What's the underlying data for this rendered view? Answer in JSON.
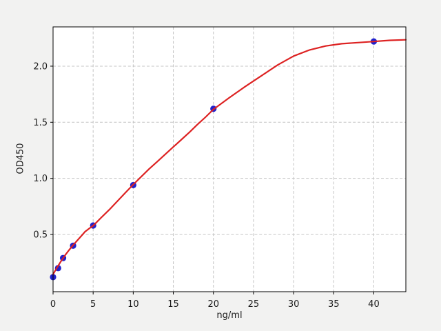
{
  "chart_data": {
    "type": "scatter",
    "xlabel": "ng/ml",
    "ylabel": "OD450",
    "xlim": [
      0,
      44
    ],
    "ylim": [
      -0.01,
      2.35
    ],
    "xticks": [
      0,
      5,
      10,
      15,
      20,
      25,
      30,
      35,
      40
    ],
    "xtick_labels": [
      "0",
      "5",
      "10",
      "15",
      "20",
      "25",
      "30",
      "35",
      "40"
    ],
    "yticks": [
      0.5,
      1.0,
      1.5,
      2.0
    ],
    "ytick_labels": [
      "0.5",
      "1.0",
      "1.5",
      "2.0"
    ],
    "grid": true,
    "grid_style": "dashed",
    "legend": false,
    "colors": {
      "figure_background": "#f2f2f1",
      "plot_background": "#ffffff",
      "grid": "#c4c4c4",
      "spine": "#000000",
      "tick_text": "#1a1a1a",
      "points": "#2222cc",
      "fit_line": "#dd2222"
    },
    "series": [
      {
        "name": "standard-points",
        "kind": "scatter",
        "color": "#2222cc",
        "x": [
          0,
          0.625,
          1.25,
          2.5,
          5,
          10,
          20,
          40
        ],
        "y": [
          0.12,
          0.2,
          0.29,
          0.4,
          0.58,
          0.94,
          1.62,
          2.22
        ]
      },
      {
        "name": "4pl-fit-curve",
        "kind": "line",
        "color": "#dd2222",
        "x": [
          0,
          0.5,
          1,
          1.5,
          2,
          2.5,
          3,
          3.5,
          4,
          4.5,
          5,
          6,
          7,
          8,
          9,
          10,
          11,
          12,
          13,
          14,
          15,
          16,
          17,
          18,
          19,
          20,
          22,
          24,
          26,
          28,
          30,
          32,
          34,
          36,
          38,
          40,
          42,
          44
        ],
        "y": [
          0.145,
          0.205,
          0.262,
          0.315,
          0.362,
          0.405,
          0.445,
          0.485,
          0.525,
          0.553,
          0.578,
          0.65,
          0.72,
          0.795,
          0.87,
          0.945,
          1.015,
          1.085,
          1.15,
          1.215,
          1.28,
          1.345,
          1.41,
          1.48,
          1.545,
          1.615,
          1.72,
          1.82,
          1.915,
          2.01,
          2.09,
          2.145,
          2.18,
          2.2,
          2.21,
          2.22,
          2.23,
          2.235
        ]
      }
    ]
  }
}
